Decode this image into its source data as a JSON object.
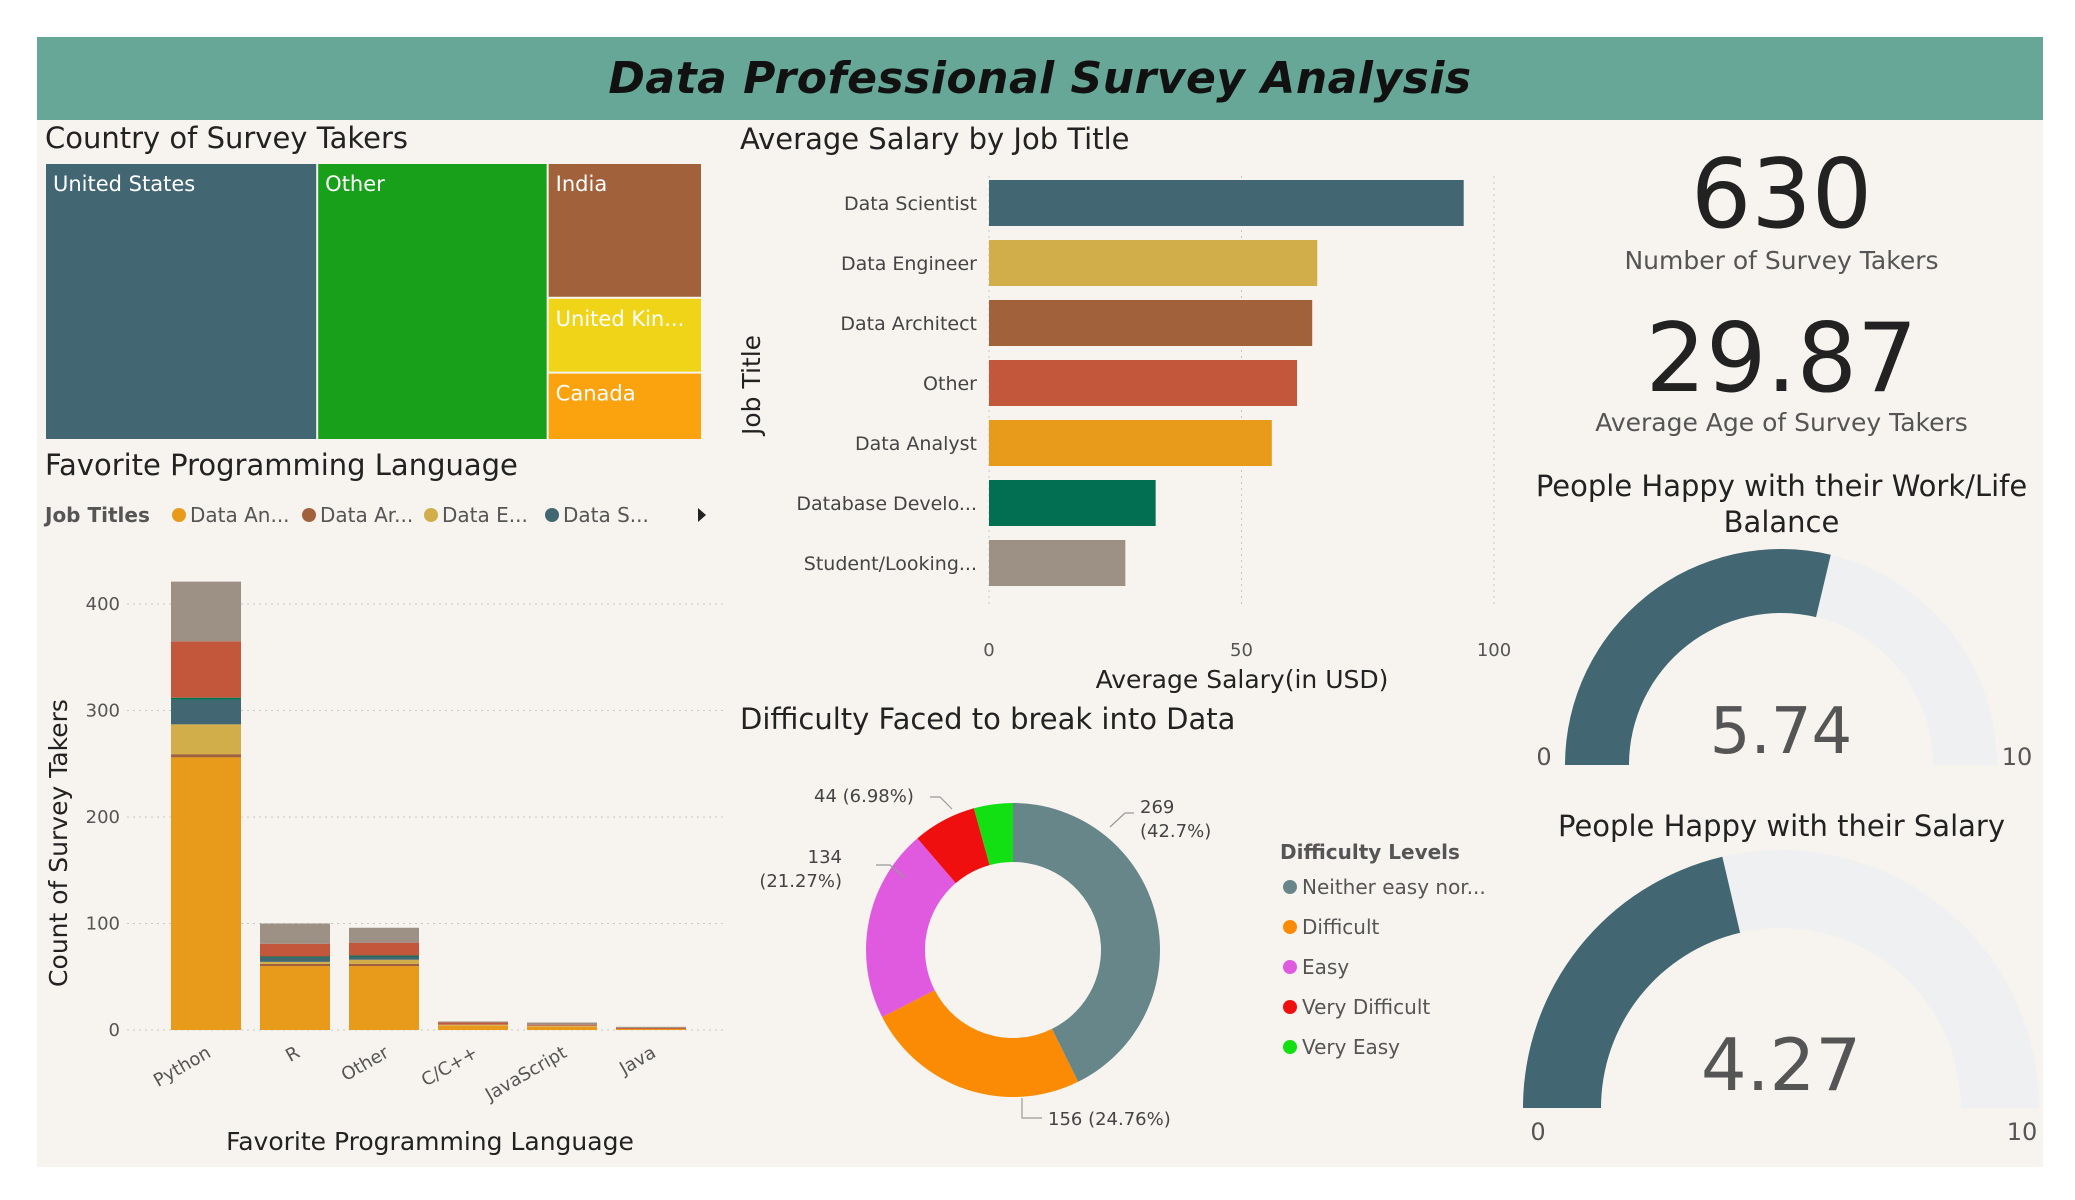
{
  "dashboard": {
    "title": "Data Professional Survey Analysis",
    "colors": {
      "header": "#67a797",
      "background": "#f7f4ef"
    }
  },
  "kpis": [
    {
      "value": "630",
      "label": "Number of Survey Takers"
    },
    {
      "value": "29.87",
      "label": "Average Age of Survey Takers"
    }
  ],
  "chart_data": [
    {
      "type": "treemap",
      "title": "Country of Survey Takers",
      "items": [
        {
          "label": "United States",
          "value": 261,
          "color": "#426672"
        },
        {
          "label": "Other",
          "value": 221,
          "color": "#18a01a"
        },
        {
          "label": "India",
          "value": 72,
          "color": "#a0613b"
        },
        {
          "label": "United Kin...",
          "value": 40,
          "color": "#f0d418"
        },
        {
          "label": "Canada",
          "value": 36,
          "color": "#fba30f"
        }
      ]
    },
    {
      "type": "bar",
      "orientation": "horizontal",
      "title": "Average Salary by Job Title",
      "xlabel": "Average Salary(in USD)",
      "ylabel": "Job Title",
      "xlim": [
        0,
        100
      ],
      "xticks": [
        0,
        50,
        100
      ],
      "categories": [
        "Data Scientist",
        "Data Engineer",
        "Data Architect",
        "Other",
        "Data Analyst",
        "Database Develo...",
        "Student/Looking..."
      ],
      "values": [
        94,
        65,
        64,
        61,
        56,
        33,
        27
      ],
      "colors": [
        "#426672",
        "#d2ae4a",
        "#a0613b",
        "#c3573b",
        "#e89a1a",
        "#026e52",
        "#9d9084"
      ]
    },
    {
      "type": "bar",
      "stacked": true,
      "title": "Favorite Programming Language",
      "xlabel": "Favorite Programming Language",
      "ylabel": "Count of Survey Takers",
      "ylim": [
        0,
        420
      ],
      "yticks": [
        0,
        100,
        200,
        300,
        400
      ],
      "legend_title": "Job Titles",
      "legend": [
        {
          "name": "Data An...",
          "color": "#e89a1a"
        },
        {
          "name": "Data Ar...",
          "color": "#a0613b"
        },
        {
          "name": "Data E...",
          "color": "#d2ae4a"
        },
        {
          "name": "Data S...",
          "color": "#426672"
        }
      ],
      "categories": [
        "Python",
        "R",
        "Other",
        "C/C++",
        "JavaScript",
        "Java"
      ],
      "series": [
        {
          "values": [
            256,
            60,
            60,
            4,
            3,
            1
          ],
          "color": "#e89a1a"
        },
        {
          "values": [
            3,
            2,
            2,
            0,
            0,
            0
          ],
          "color": "#a0613b"
        },
        {
          "values": [
            28,
            2,
            4,
            1,
            1,
            0
          ],
          "color": "#d2ae4a"
        },
        {
          "values": [
            23,
            4,
            3,
            0,
            0,
            0
          ],
          "color": "#426672"
        },
        {
          "values": [
            2,
            1,
            1,
            0,
            0,
            0
          ],
          "color": "#026e52"
        },
        {
          "values": [
            53,
            12,
            12,
            2,
            1,
            1
          ],
          "color": "#c3573b"
        },
        {
          "values": [
            56,
            19,
            14,
            1,
            2,
            1
          ],
          "color": "#9d9084"
        }
      ]
    },
    {
      "type": "pie",
      "donut": true,
      "title": "Difficulty Faced to break into Data",
      "legend_title": "Difficulty Levels",
      "slices": [
        {
          "name": "Neither easy nor...",
          "value": 269,
          "label1": "269",
          "label2": "(42.7%)",
          "color": "#678689"
        },
        {
          "name": "Difficult",
          "value": 156,
          "label1": "156 (24.76%)",
          "label2": "",
          "color": "#fb8b05"
        },
        {
          "name": "Easy",
          "value": 134,
          "label1": "134",
          "label2": "(21.27%)",
          "color": "#e05ae0"
        },
        {
          "name": "Very Difficult",
          "value": 44,
          "label1": "44 (6.98%)",
          "label2": "",
          "color": "#f00f0f"
        },
        {
          "name": "Very Easy",
          "value": 27,
          "label1": "",
          "label2": "",
          "color": "#13e013"
        }
      ]
    },
    {
      "type": "gauge",
      "title": "People Happy with their Work/Life Balance",
      "value": 5.74,
      "display": "5.74",
      "min": 0,
      "max": 10,
      "min_label": "0",
      "max_label": "10",
      "color": "#426672",
      "track_color": "#eff0f1"
    },
    {
      "type": "gauge",
      "title": "People Happy with their Salary",
      "value": 4.27,
      "display": "4.27",
      "min": 0,
      "max": 10,
      "min_label": "0",
      "max_label": "10",
      "color": "#426672",
      "track_color": "#eff0f1"
    }
  ]
}
